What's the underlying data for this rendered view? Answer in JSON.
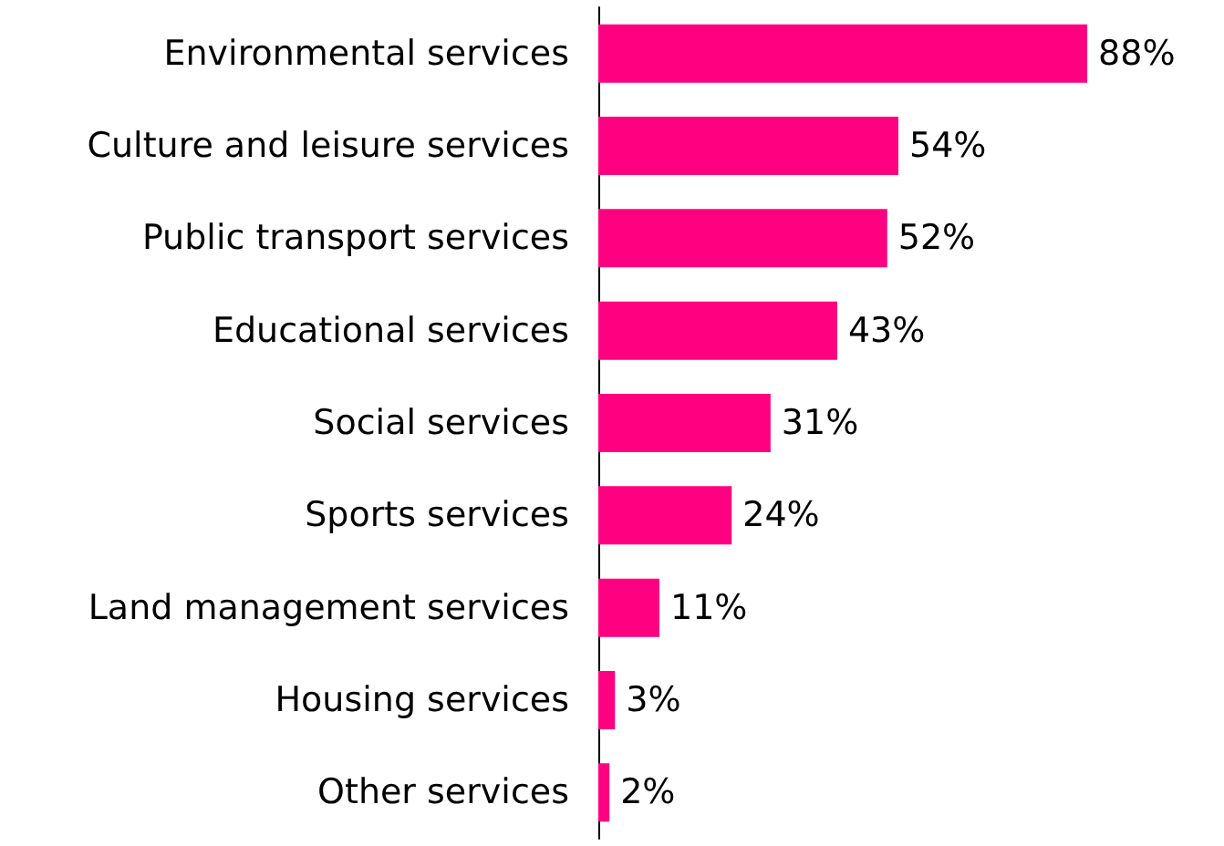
{
  "chart_data": {
    "type": "bar",
    "orientation": "horizontal",
    "categories": [
      "Environmental services",
      "Culture and leisure services",
      "Public transport services",
      "Educational services",
      "Social services",
      "Sports services",
      "Land management services",
      "Housing services",
      "Other services"
    ],
    "values": [
      88,
      54,
      52,
      43,
      31,
      24,
      11,
      3,
      2
    ],
    "value_labels": [
      "88%",
      "54%",
      "52%",
      "43%",
      "31%",
      "24%",
      "11%",
      "3%",
      "2%"
    ],
    "color": "#ff0080",
    "tick_labels": "y"
  }
}
